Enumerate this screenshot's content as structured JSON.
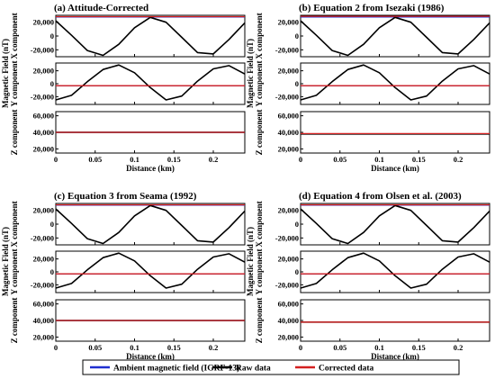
{
  "chart_data": {
    "type": "line",
    "legend": {
      "placement": "bottom",
      "entries": [
        {
          "label": "Ambient magnetic field (IGRF-13)",
          "color": "#1f2fd0"
        },
        {
          "label": "Raw data",
          "color": "#000000"
        },
        {
          "label": "Corrected data",
          "color": "#d42020"
        }
      ]
    },
    "x_axis": {
      "label": "Distance (km)",
      "range": [
        0,
        0.24
      ],
      "ticks": [
        0,
        0.05,
        0.1,
        0.15,
        0.2
      ],
      "tick_labels": [
        "0",
        "0.05",
        "0.1",
        "0.15",
        "0.2"
      ]
    },
    "shared_ylabel": "Magnetic Field (nT)",
    "components": [
      {
        "label": "X component",
        "ylim": [
          -30000,
          30000
        ],
        "ticks": [
          -20000,
          0,
          20000
        ],
        "tick_labels": [
          "-20,000",
          "0",
          "20,000"
        ]
      },
      {
        "label": "Y component",
        "ylim": [
          -32000,
          32000
        ],
        "ticks": [
          -20000,
          0,
          20000
        ],
        "tick_labels": [
          "-20,000",
          "0",
          "20,000"
        ]
      },
      {
        "label": "Z component",
        "ylim": [
          15000,
          65000
        ],
        "ticks": [
          20000,
          40000,
          60000
        ],
        "tick_labels": [
          "20,000",
          "40,000",
          "60,000"
        ]
      }
    ],
    "panels": [
      {
        "title": "(a) Attitude-Corrected",
        "series": [
          {
            "name": "Ambient magnetic field (IGRF-13)",
            "component": "X component",
            "x": [
              0,
              0.24
            ],
            "y": [
              27500,
              27500
            ]
          },
          {
            "name": "Raw data",
            "component": "X component",
            "x": [
              0,
              0.02,
              0.04,
              0.06,
              0.08,
              0.1,
              0.12,
              0.14,
              0.16,
              0.18,
              0.2,
              0.22,
              0.24
            ],
            "y": [
              22000,
              1000,
              -21000,
              -28000,
              -12000,
              12000,
              27000,
              20000,
              -2000,
              -24000,
              -26000,
              -5000,
              19000
            ]
          },
          {
            "name": "Corrected data",
            "component": "X component",
            "x": [
              0,
              0.24
            ],
            "y": [
              28000,
              28000
            ]
          },
          {
            "name": "Ambient magnetic field (IGRF-13)",
            "component": "Y component",
            "x": [
              0,
              0.24
            ],
            "y": [
              -3000,
              -3000
            ]
          },
          {
            "name": "Raw data",
            "component": "Y component",
            "x": [
              0,
              0.02,
              0.04,
              0.06,
              0.08,
              0.1,
              0.12,
              0.14,
              0.16,
              0.18,
              0.2,
              0.22,
              0.24
            ],
            "y": [
              -25000,
              -18000,
              3000,
              22000,
              29000,
              17000,
              -6000,
              -25000,
              -19000,
              4000,
              23000,
              28000,
              15000
            ]
          },
          {
            "name": "Corrected data",
            "component": "Y component",
            "x": [
              0,
              0.24
            ],
            "y": [
              -3000,
              -3000
            ]
          },
          {
            "name": "Ambient magnetic field (IGRF-13)",
            "component": "Z component",
            "x": [
              0,
              0.24
            ],
            "y": [
              40000,
              40000
            ]
          },
          {
            "name": "Raw data",
            "component": "Z component",
            "x": [
              0,
              0.24
            ],
            "y": [
              40000,
              40000
            ]
          },
          {
            "name": "Corrected data",
            "component": "Z component",
            "x": [
              0,
              0.24
            ],
            "y": [
              40000,
              40000
            ]
          }
        ]
      },
      {
        "title": "(b) Equation 2 from Isezaki (1986)",
        "series": [
          {
            "name": "Ambient magnetic field (IGRF-13)",
            "component": "X component",
            "x": [
              0,
              0.24
            ],
            "y": [
              27500,
              27500
            ]
          },
          {
            "name": "Raw data",
            "component": "X component",
            "x": [
              0,
              0.02,
              0.04,
              0.06,
              0.08,
              0.1,
              0.12,
              0.14,
              0.16,
              0.18,
              0.2,
              0.22,
              0.24
            ],
            "y": [
              22000,
              1000,
              -21000,
              -28000,
              -12000,
              12000,
              27000,
              20000,
              -2000,
              -24000,
              -26000,
              -5000,
              19000
            ]
          },
          {
            "name": "Corrected data",
            "component": "X component",
            "x": [
              0,
              0.24
            ],
            "y": [
              28500,
              28500
            ]
          },
          {
            "name": "Ambient magnetic field (IGRF-13)",
            "component": "Y component",
            "x": [
              0,
              0.24
            ],
            "y": [
              -3000,
              -3000
            ]
          },
          {
            "name": "Raw data",
            "component": "Y component",
            "x": [
              0,
              0.02,
              0.04,
              0.06,
              0.08,
              0.1,
              0.12,
              0.14,
              0.16,
              0.18,
              0.2,
              0.22,
              0.24
            ],
            "y": [
              -25000,
              -18000,
              3000,
              22000,
              29000,
              17000,
              -6000,
              -25000,
              -19000,
              4000,
              23000,
              28000,
              15000
            ]
          },
          {
            "name": "Corrected data",
            "component": "Y component",
            "x": [
              0,
              0.24
            ],
            "y": [
              -3000,
              -3000
            ]
          },
          {
            "name": "Ambient magnetic field (IGRF-13)",
            "component": "Z component",
            "x": [
              0,
              0.24
            ],
            "y": [
              38000,
              38000
            ]
          },
          {
            "name": "Raw data",
            "component": "Z component",
            "x": [
              0,
              0.24
            ],
            "y": [
              38000,
              38000
            ]
          },
          {
            "name": "Corrected data",
            "component": "Z component",
            "x": [
              0,
              0.24
            ],
            "y": [
              38500,
              38500
            ]
          }
        ]
      },
      {
        "title": "(c) Equation 3 from Seama (1992)",
        "series": [
          {
            "name": "Ambient magnetic field (IGRF-13)",
            "component": "X component",
            "x": [
              0,
              0.24
            ],
            "y": [
              27500,
              27500
            ]
          },
          {
            "name": "Raw data",
            "component": "X component",
            "x": [
              0,
              0.02,
              0.04,
              0.06,
              0.08,
              0.1,
              0.12,
              0.14,
              0.16,
              0.18,
              0.2,
              0.22,
              0.24
            ],
            "y": [
              22000,
              1000,
              -21000,
              -28000,
              -12000,
              12000,
              27000,
              20000,
              -2000,
              -24000,
              -26000,
              -5000,
              19000
            ]
          },
          {
            "name": "Corrected data",
            "component": "X component",
            "x": [
              0,
              0.24
            ],
            "y": [
              28000,
              28000
            ]
          },
          {
            "name": "Ambient magnetic field (IGRF-13)",
            "component": "Y component",
            "x": [
              0,
              0.24
            ],
            "y": [
              -3000,
              -3000
            ]
          },
          {
            "name": "Raw data",
            "component": "Y component",
            "x": [
              0,
              0.02,
              0.04,
              0.06,
              0.08,
              0.1,
              0.12,
              0.14,
              0.16,
              0.18,
              0.2,
              0.22,
              0.24
            ],
            "y": [
              -25000,
              -18000,
              3000,
              22000,
              29000,
              17000,
              -6000,
              -25000,
              -19000,
              4000,
              23000,
              28000,
              15000
            ]
          },
          {
            "name": "Corrected data",
            "component": "Y component",
            "x": [
              0,
              0.24
            ],
            "y": [
              -3000,
              -3000
            ]
          },
          {
            "name": "Ambient magnetic field (IGRF-13)",
            "component": "Z component",
            "x": [
              0,
              0.24
            ],
            "y": [
              40000,
              40000
            ]
          },
          {
            "name": "Raw data",
            "component": "Z component",
            "x": [
              0,
              0.24
            ],
            "y": [
              40000,
              40000
            ]
          },
          {
            "name": "Corrected data",
            "component": "Z component",
            "x": [
              0,
              0.24
            ],
            "y": [
              40000,
              40000
            ]
          }
        ]
      },
      {
        "title": "(d) Equation 4 from Olsen et al. (2003)",
        "series": [
          {
            "name": "Ambient magnetic field (IGRF-13)",
            "component": "X component",
            "x": [
              0,
              0.24
            ],
            "y": [
              27500,
              27500
            ]
          },
          {
            "name": "Raw data",
            "component": "X component",
            "x": [
              0,
              0.02,
              0.04,
              0.06,
              0.08,
              0.1,
              0.12,
              0.14,
              0.16,
              0.18,
              0.2,
              0.22,
              0.24
            ],
            "y": [
              22000,
              1000,
              -21000,
              -28000,
              -12000,
              12000,
              27000,
              20000,
              -2000,
              -24000,
              -26000,
              -5000,
              19000
            ]
          },
          {
            "name": "Corrected data",
            "component": "X component",
            "x": [
              0,
              0.24
            ],
            "y": [
              28000,
              28000
            ]
          },
          {
            "name": "Ambient magnetic field (IGRF-13)",
            "component": "Y component",
            "x": [
              0,
              0.24
            ],
            "y": [
              -3000,
              -3000
            ]
          },
          {
            "name": "Raw data",
            "component": "Y component",
            "x": [
              0,
              0.02,
              0.04,
              0.06,
              0.08,
              0.1,
              0.12,
              0.14,
              0.16,
              0.18,
              0.2,
              0.22,
              0.24
            ],
            "y": [
              -25000,
              -18000,
              3000,
              22000,
              29000,
              17000,
              -6000,
              -25000,
              -19000,
              4000,
              23000,
              28000,
              15000
            ]
          },
          {
            "name": "Corrected data",
            "component": "Y component",
            "x": [
              0,
              0.24
            ],
            "y": [
              -3000,
              -3000
            ]
          },
          {
            "name": "Ambient magnetic field (IGRF-13)",
            "component": "Z component",
            "x": [
              0,
              0.24
            ],
            "y": [
              38000,
              38000
            ]
          },
          {
            "name": "Raw data",
            "component": "Z component",
            "x": [
              0,
              0.24
            ],
            "y": [
              38000,
              38000
            ]
          },
          {
            "name": "Corrected data",
            "component": "Z component",
            "x": [
              0,
              0.24
            ],
            "y": [
              38000,
              38000
            ]
          }
        ]
      }
    ]
  }
}
